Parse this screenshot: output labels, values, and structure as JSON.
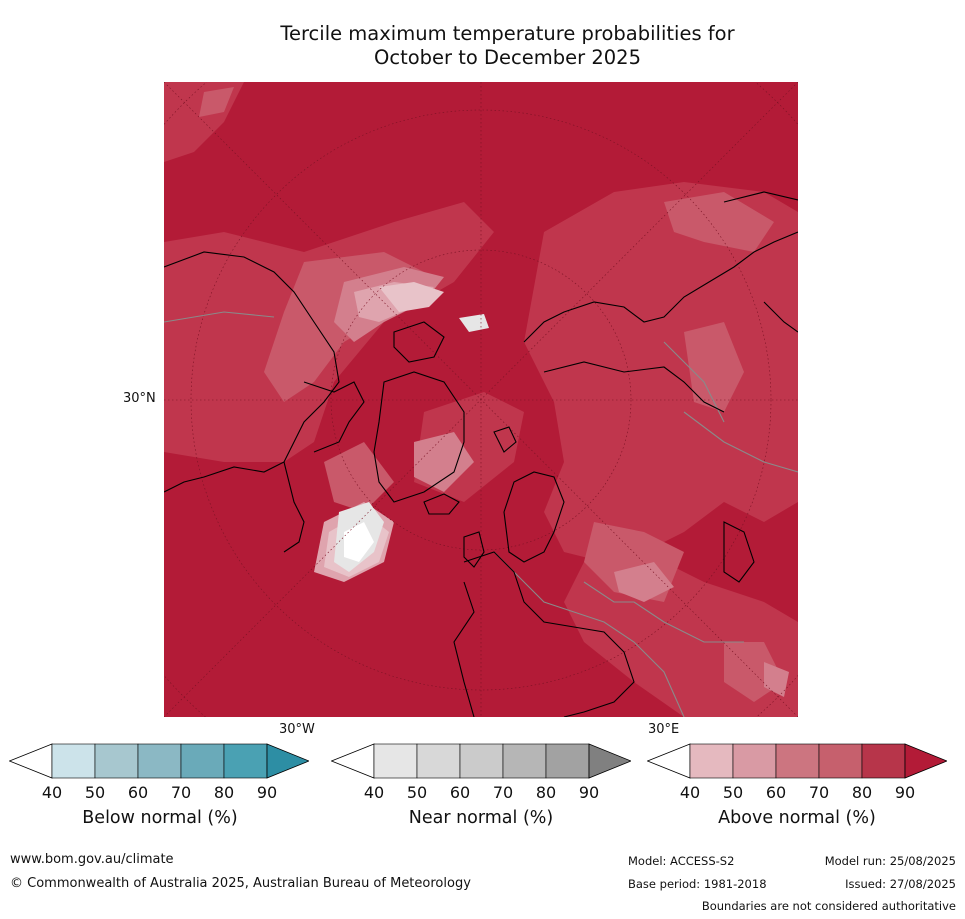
{
  "title": {
    "line1": "Tercile maximum temperature probabilities for",
    "line2": "October to December 2025"
  },
  "map": {
    "lat_label": "30°N",
    "lon_label_west": "30°W",
    "lon_label_east": "30°E",
    "colors": {
      "above_90": "#b31b37",
      "above_80": "#c0364d",
      "above_70": "#c9596a",
      "above_60": "#d37f8d",
      "above_50": "#dfa4ae",
      "above_40": "#e8c3c9",
      "near_40": "#e6e6e6",
      "coast": "#000000",
      "border": "#8a8a8a"
    }
  },
  "colorbars": [
    {
      "name": "below",
      "label": "Below normal (%)",
      "ticks": [
        "40",
        "50",
        "60",
        "70",
        "80",
        "90"
      ],
      "colors": [
        "#cce3ea",
        "#a7c7cf",
        "#8bb8c4",
        "#6aaab9",
        "#4aa1b3",
        "#2d8ea4"
      ]
    },
    {
      "name": "near",
      "label": "Near normal (%)",
      "ticks": [
        "40",
        "50",
        "60",
        "70",
        "80",
        "90"
      ],
      "colors": [
        "#e6e6e6",
        "#d8d8d8",
        "#cbcbcb",
        "#b6b6b6",
        "#a2a2a2",
        "#808080"
      ]
    },
    {
      "name": "above",
      "label": "Above normal (%)",
      "ticks": [
        "40",
        "50",
        "60",
        "70",
        "80",
        "90"
      ],
      "colors": [
        "#e5b9bf",
        "#d99aa4",
        "#cc7580",
        "#c6606d",
        "#b7354a",
        "#b31b37"
      ]
    }
  ],
  "footer": {
    "website": "www.bom.gov.au/climate",
    "copyright": "© Commonwealth of Australia 2025, Australian Bureau of Meteorology",
    "model": "Model: ACCESS-S2",
    "base_period": "Base period: 1981-2018",
    "model_run": "Model run: 25/08/2025",
    "issued": "Issued: 27/08/2025",
    "disclaimer": "Boundaries are not considered authoritative"
  }
}
